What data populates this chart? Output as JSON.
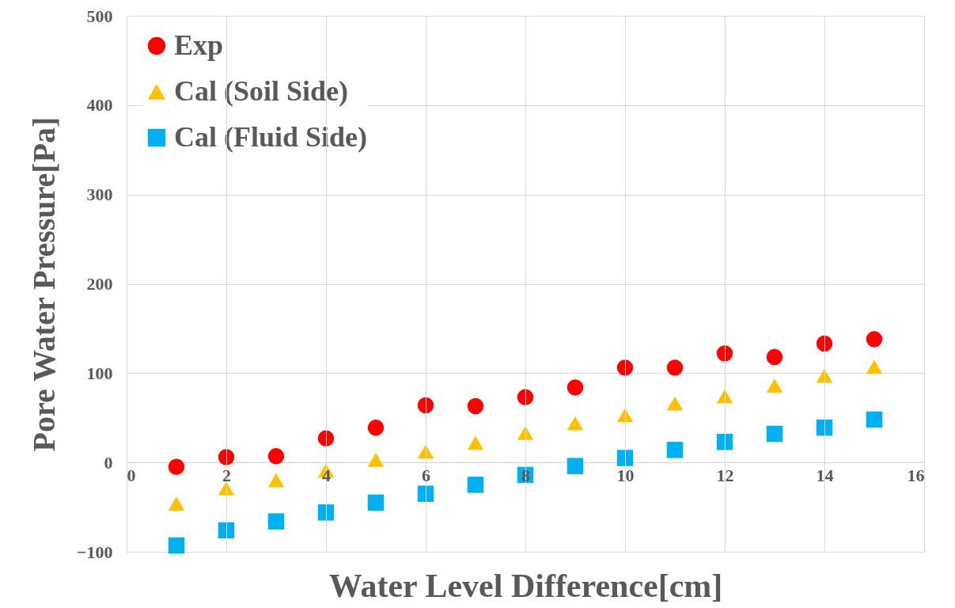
{
  "chart_data": {
    "type": "scatter",
    "xlabel": "Water Level Difference[cm]",
    "ylabel": "Pore Water Pressure[Pa]",
    "x": [
      1,
      2,
      3,
      4,
      5,
      6,
      7,
      8,
      9,
      10,
      11,
      12,
      13,
      14,
      15
    ],
    "series": [
      {
        "name": "Exp",
        "color": "#ff0000",
        "marker": "circle",
        "values": [
          -5,
          6,
          7,
          27,
          39,
          64,
          63,
          73,
          84,
          106,
          106,
          122,
          118,
          133,
          138
        ]
      },
      {
        "name": "Cal (Soil Side)",
        "color": "#ffc000",
        "marker": "triangle",
        "values": [
          -46,
          -29,
          -20,
          -9,
          3,
          12,
          22,
          33,
          44,
          53,
          66,
          74,
          86,
          97,
          107
        ]
      },
      {
        "name": "Cal (Fluid Side)",
        "color": "#00b0f0",
        "marker": "square",
        "values": [
          -93,
          -76,
          -66,
          -56,
          -45,
          -35,
          -25,
          -14,
          -4,
          5,
          14,
          23,
          32,
          39,
          48
        ]
      }
    ],
    "xlim": [
      0,
      16
    ],
    "xticks": [
      0,
      2,
      4,
      6,
      8,
      10,
      12,
      14,
      16
    ],
    "ylim": [
      -100,
      500
    ],
    "yticks": [
      -100,
      0,
      100,
      200,
      300,
      400,
      500
    ],
    "grid": true,
    "legend": "top left"
  }
}
